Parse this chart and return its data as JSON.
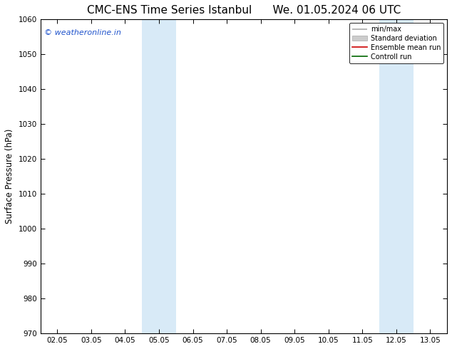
{
  "title_left": "CMC-ENS Time Series Istanbul",
  "title_right": "We. 01.05.2024 06 UTC",
  "ylabel": "Surface Pressure (hPa)",
  "ylim": [
    970,
    1060
  ],
  "yticks": [
    970,
    980,
    990,
    1000,
    1010,
    1020,
    1030,
    1040,
    1050,
    1060
  ],
  "xtick_labels": [
    "02.05",
    "03.05",
    "04.05",
    "05.05",
    "06.05",
    "07.05",
    "08.05",
    "09.05",
    "10.05",
    "11.05",
    "12.05",
    "13.05"
  ],
  "xtick_positions": [
    0,
    1,
    2,
    3,
    4,
    5,
    6,
    7,
    8,
    9,
    10,
    11
  ],
  "xlim": [
    -0.5,
    11.5
  ],
  "shaded_regions": [
    {
      "xmin": 2.5,
      "xmax": 3.5,
      "color": "#d8eaf7"
    },
    {
      "xmin": 9.5,
      "xmax": 10.5,
      "color": "#d8eaf7"
    }
  ],
  "watermark_text": "© weatheronline.in",
  "watermark_color": "#2255cc",
  "watermark_fontsize": 8,
  "legend_entries": [
    {
      "label": "min/max",
      "color": "#aaaaaa",
      "lw": 1.2
    },
    {
      "label": "Standard deviation",
      "color": "#cccccc",
      "lw": 6
    },
    {
      "label": "Ensemble mean run",
      "color": "#cc0000",
      "lw": 1.2
    },
    {
      "label": "Controll run",
      "color": "#006600",
      "lw": 1.2
    }
  ],
  "title_fontsize": 11,
  "axis_fontsize": 7.5,
  "ylabel_fontsize": 8.5,
  "bg_color": "#ffffff"
}
